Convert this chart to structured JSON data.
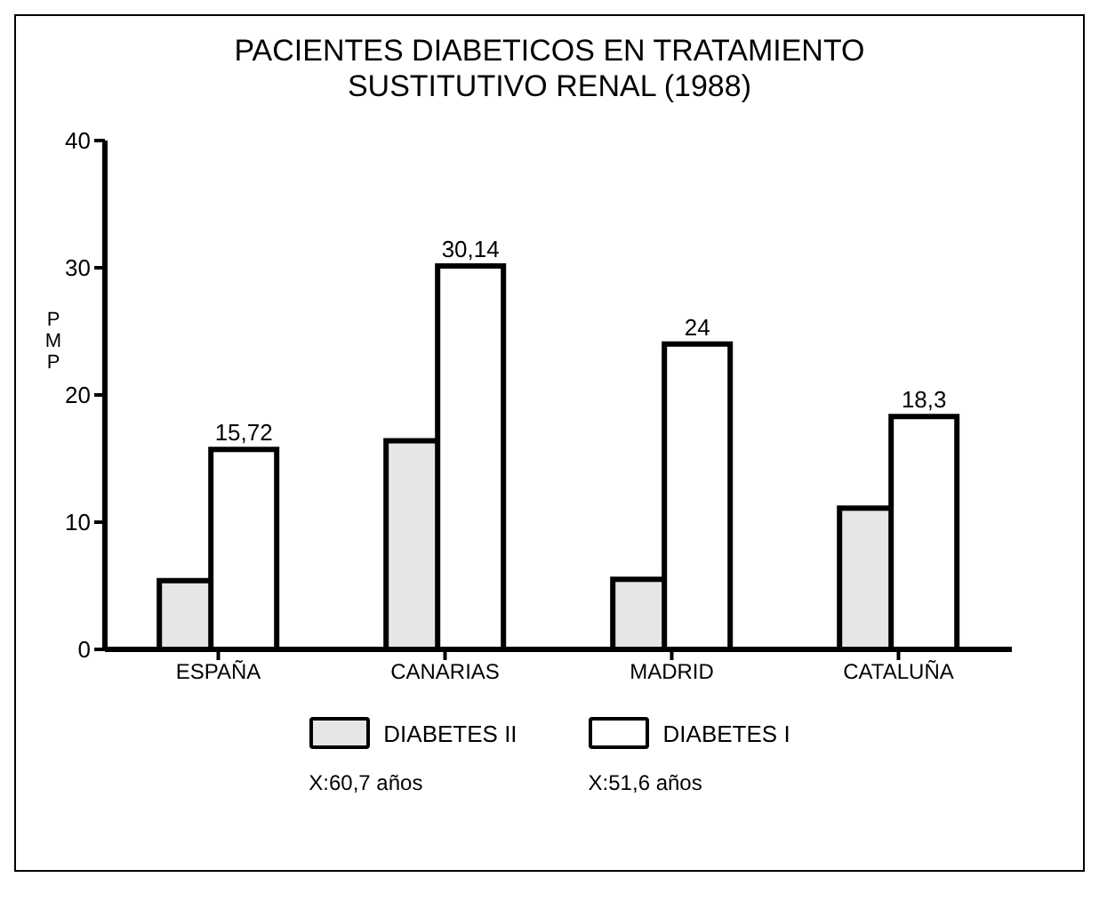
{
  "chart_data": {
    "type": "bar",
    "title": "PACIENTES DIABETICOS EN TRATAMIENTO SUSTITUTIVO RENAL (1988)",
    "ylabel": "PMP",
    "categories": [
      "ESPAÑA",
      "CANARIAS",
      "MADRID",
      "CATALUÑA"
    ],
    "series": [
      {
        "name": "DIABETES II",
        "color": "#e6e6e6",
        "values": [
          5.4,
          16.4,
          5.5,
          11.1
        ]
      },
      {
        "name": "DIABETES I",
        "color": "#ffffff",
        "values": [
          15.72,
          30.14,
          24,
          18.3
        ],
        "value_labels": [
          "15,72",
          "30,14",
          "24",
          "18,3"
        ]
      }
    ],
    "ylim": [
      0,
      40
    ],
    "yticks": [
      0,
      10,
      20,
      30,
      40
    ],
    "grid": false,
    "legend": "bottom",
    "annotations": [
      "X:60,7 años",
      "X:51,6 años"
    ]
  }
}
